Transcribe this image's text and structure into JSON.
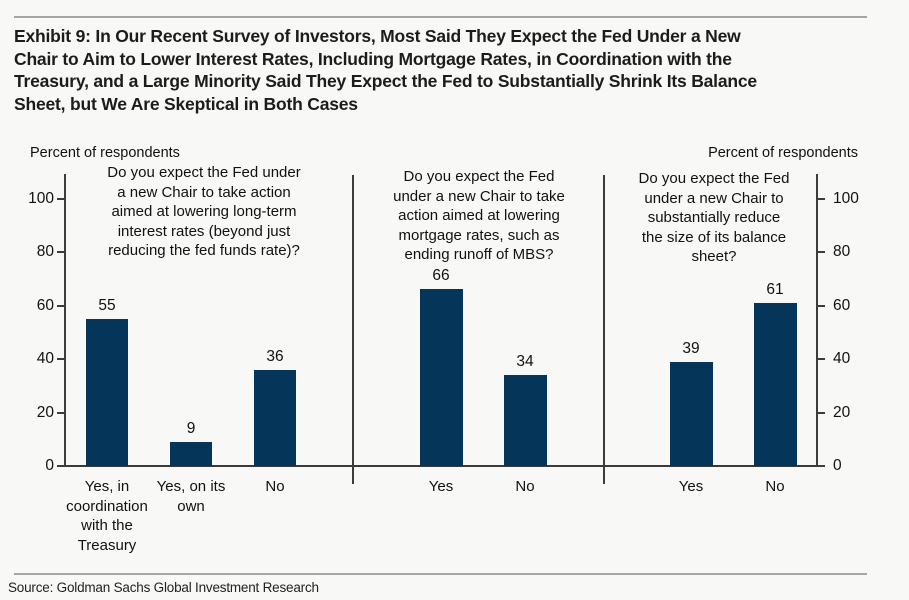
{
  "title": "Exhibit 9: In Our Recent Survey of Investors, Most Said They Expect the Fed Under a New\nChair to Aim to Lower Interest Rates, Including Mortgage Rates, in Coordination with the\nTreasury, and a Large Minority Said They Expect the Fed to Substantially Shrink Its Balance\nSheet, but We Are Skeptical in Both Cases",
  "axis_label_left": "Percent of respondents",
  "axis_label_right": "Percent of respondents",
  "source": "Source: Goldman Sachs Global Investment Research",
  "colors": {
    "bar": "#05365a",
    "axis": "#3c3c3c",
    "rule": "#a6a6a6",
    "background": "#f8f8f6",
    "text": "#111111"
  },
  "chart_data": {
    "type": "bar",
    "title": "",
    "ylabel": "Percent of respondents",
    "ylim": [
      0,
      100
    ],
    "yticks": [
      0,
      20,
      40,
      60,
      80,
      100
    ],
    "grid": false,
    "legend": "none",
    "panels": [
      {
        "question": "Do you expect the Fed under\na new Chair to take action\naimed at lowering long-term\ninterest rates (beyond just\nreducing the fed funds rate)?",
        "categories": [
          "Yes, in\ncoordination\nwith the\nTreasury",
          "Yes, on its\nown",
          "No"
        ],
        "values": [
          55,
          9,
          36
        ]
      },
      {
        "question": "Do you expect the Fed\nunder a new Chair to take\naction aimed at lowering\nmortgage rates, such as\nending runoff of MBS?",
        "categories": [
          "Yes",
          "No"
        ],
        "values": [
          66,
          34
        ]
      },
      {
        "question": "Do you expect the Fed\nunder a new Chair to\nsubstantially reduce\nthe size of its balance\nsheet?",
        "categories": [
          "Yes",
          "No"
        ],
        "values": [
          39,
          61
        ]
      }
    ]
  }
}
